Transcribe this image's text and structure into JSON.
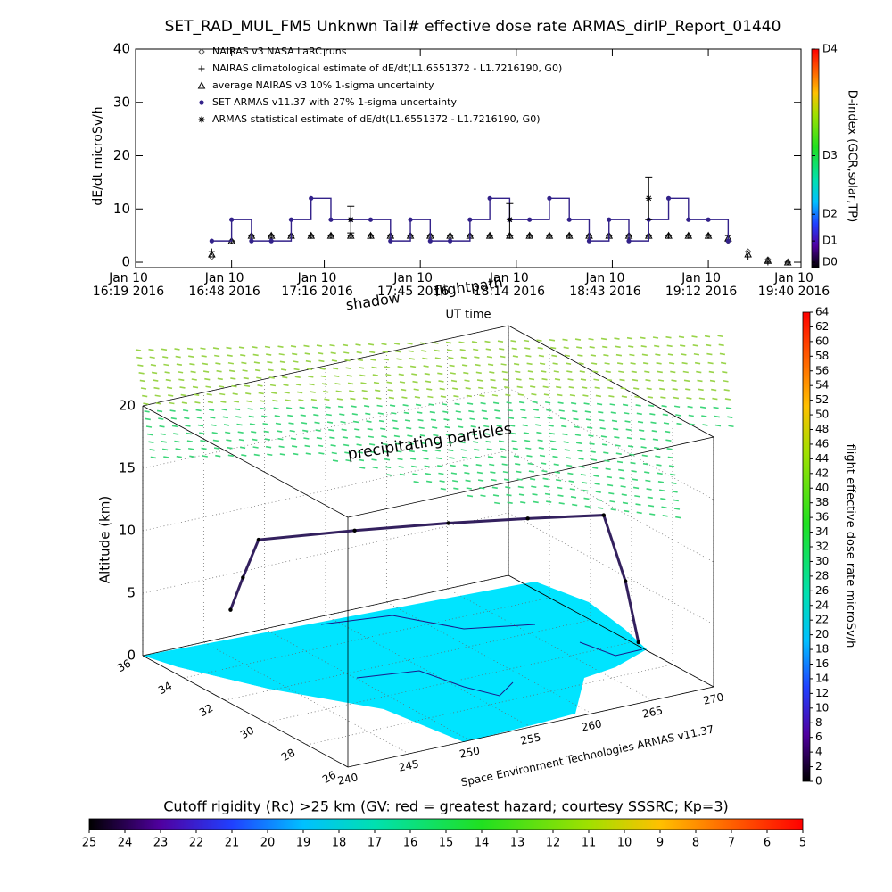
{
  "chart_data": [
    {
      "type": "line",
      "title": "SET_RAD_MUL_FM5 Unknwn Tail#  effective dose rate ARMAS_dirIP_Report_01440",
      "ylabel": "dE/dt microSv/h",
      "xlabel": "UT time",
      "annotations": [
        "shadow",
        "flightpath"
      ],
      "legend": "upper left",
      "xlim": [
        "2016-01-10T16:19",
        "2016-01-10T19:40"
      ],
      "xticks": [
        {
          "value": "2016-01-10T16:19",
          "label": "Jan 10\n16:19 2016"
        },
        {
          "value": "2016-01-10T16:48",
          "label": "Jan 10\n16:48 2016"
        },
        {
          "value": "2016-01-10T17:16",
          "label": "Jan 10\n17:16 2016"
        },
        {
          "value": "2016-01-10T17:45",
          "label": "Jan 10\n17:45 2016"
        },
        {
          "value": "2016-01-10T18:14",
          "label": "Jan 10\n18:14 2016"
        },
        {
          "value": "2016-01-10T18:43",
          "label": "Jan 10\n18:43 2016"
        },
        {
          "value": "2016-01-10T19:12",
          "label": "Jan 10\n19:12 2016"
        },
        {
          "value": "2016-01-10T19:40",
          "label": "Jan 10\n19:40 2016"
        }
      ],
      "ylim": [
        -1,
        40
      ],
      "yticks": [
        0,
        10,
        20,
        30,
        40
      ],
      "x": [
        "2016-01-10T16:42",
        "2016-01-10T16:48",
        "2016-01-10T16:54",
        "2016-01-10T17:00",
        "2016-01-10T17:06",
        "2016-01-10T17:12",
        "2016-01-10T17:18",
        "2016-01-10T17:24",
        "2016-01-10T17:30",
        "2016-01-10T17:36",
        "2016-01-10T17:42",
        "2016-01-10T17:48",
        "2016-01-10T17:54",
        "2016-01-10T18:00",
        "2016-01-10T18:06",
        "2016-01-10T18:12",
        "2016-01-10T18:18",
        "2016-01-10T18:24",
        "2016-01-10T18:30",
        "2016-01-10T18:36",
        "2016-01-10T18:42",
        "2016-01-10T18:48",
        "2016-01-10T18:54",
        "2016-01-10T19:00",
        "2016-01-10T19:06",
        "2016-01-10T19:12",
        "2016-01-10T19:18",
        "2016-01-10T19:24",
        "2016-01-10T19:30",
        "2016-01-10T19:36"
      ],
      "series": [
        {
          "name": "NAIRAS v3 NASA LaRC runs",
          "color": "#555555",
          "marker": "diamond",
          "values": [
            1,
            4,
            5,
            5,
            5,
            5,
            5,
            5,
            5,
            5,
            5,
            5,
            5,
            5,
            5,
            5,
            5,
            5,
            5,
            5,
            5,
            5,
            5,
            5,
            5,
            5,
            4,
            2,
            0.5,
            0
          ]
        },
        {
          "name": "NAIRAS climatological estimate of dE/dt(L1.6551372 - L1.7216190, G0)",
          "color": "#000000",
          "marker": "plus",
          "values": [
            2,
            4,
            5,
            5,
            5,
            5,
            5,
            5,
            5,
            5,
            5,
            5,
            5,
            5,
            5,
            5,
            5,
            5,
            5,
            5,
            5,
            5,
            5,
            5,
            5,
            5,
            5,
            1,
            0,
            0
          ]
        },
        {
          "name": "average NAIRAS v3 10% 1-sigma uncertainty",
          "color": "#000000",
          "marker": "triangle",
          "values": [
            1.5,
            4,
            5,
            5,
            5,
            5,
            5,
            5,
            5,
            5,
            5,
            5,
            5,
            5,
            5,
            5,
            5,
            5,
            5,
            5,
            5,
            5,
            5,
            5,
            5,
            5,
            4.5,
            1.5,
            0.3,
            0
          ]
        },
        {
          "name": "SET ARMAS v11.37 with 27% 1-sigma uncertainty",
          "color": "#33228a",
          "marker": "dot",
          "line": true,
          "values": [
            4,
            8,
            4,
            4,
            8,
            12,
            8,
            8,
            8,
            4,
            8,
            4,
            4,
            8,
            12,
            8,
            8,
            12,
            8,
            4,
            8,
            4,
            8,
            12,
            8,
            8,
            4,
            null,
            null,
            null
          ]
        },
        {
          "name": "ARMAS statistical estimate of dE/dt(L1.6551372 - L1.7216190, G0)",
          "color": "#000000",
          "marker": "asterisk",
          "values": [
            null,
            null,
            null,
            null,
            null,
            null,
            null,
            8,
            null,
            null,
            null,
            null,
            null,
            null,
            null,
            8,
            null,
            null,
            null,
            null,
            null,
            null,
            12,
            null,
            null,
            null,
            null,
            null,
            null,
            null
          ],
          "errors": [
            null,
            null,
            null,
            null,
            null,
            null,
            null,
            2.5,
            null,
            null,
            null,
            null,
            null,
            null,
            null,
            3,
            null,
            null,
            null,
            null,
            null,
            null,
            4,
            null,
            null,
            null,
            null,
            null,
            null,
            null
          ]
        }
      ],
      "dindex": {
        "label": "D-index (GCR,solar,TP)",
        "ticks": [
          {
            "value": 0,
            "label": "D0"
          },
          {
            "value": 4,
            "label": "D1"
          },
          {
            "value": 9,
            "label": "D2"
          },
          {
            "value": 20,
            "label": "D3"
          },
          {
            "value": 40,
            "label": "D4"
          }
        ]
      }
    },
    {
      "type": "track3d",
      "zlabel": "Altitude (km)",
      "annotations": [
        "precipitating particles",
        "Space Environment Technologies ARMAS v11.37"
      ],
      "lonlim": [
        240,
        270
      ],
      "lonticks": [
        240,
        245,
        250,
        255,
        260,
        265,
        270
      ],
      "latlim": [
        26,
        36
      ],
      "latticks": [
        36,
        34,
        32,
        30,
        28,
        26
      ],
      "zlim": [
        0,
        20
      ],
      "zticks": [
        0,
        5,
        10,
        15,
        20
      ],
      "track": {
        "color": "#33205e",
        "lon": [
          246.7,
          246.2,
          245.8,
          252,
          258,
          263,
          267.8,
          269.5,
          270.4
        ],
        "lat": [
          35.7,
          34.8,
          33.8,
          32.8,
          31.8,
          30.9,
          30.05,
          30,
          29.9
        ],
        "alt": [
          2.5,
          6,
          10,
          10.3,
          10.5,
          10.6,
          10.6,
          5,
          0
        ]
      },
      "colorbar": {
        "label": "flight effective dose rate microSv/h",
        "lim": [
          0,
          64
        ],
        "ticks": [
          0,
          2,
          4,
          6,
          8,
          10,
          12,
          14,
          16,
          18,
          20,
          22,
          24,
          26,
          28,
          30,
          32,
          34,
          36,
          38,
          40,
          42,
          44,
          46,
          48,
          50,
          52,
          54,
          56,
          58,
          60,
          62,
          64
        ]
      }
    },
    {
      "type": "colorbar",
      "title": "Cutoff rigidity (Rc) >25 km (GV: red = greatest hazard; courtesy SSSRC; Kp=3)",
      "lim": [
        25,
        5
      ],
      "ticks": [
        25,
        24,
        23,
        22,
        21,
        20,
        19,
        18,
        17,
        16,
        15,
        14,
        13,
        12,
        11,
        10,
        9,
        8,
        7,
        6,
        5
      ]
    }
  ]
}
